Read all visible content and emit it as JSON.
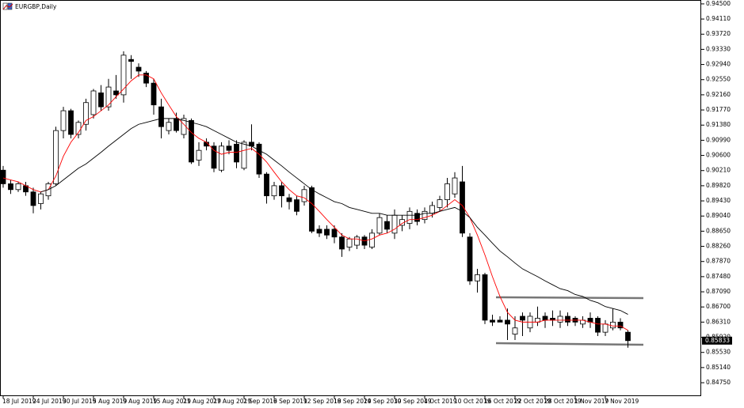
{
  "chart_data": {
    "type": "candlestick",
    "title": "EURGBP,Daily",
    "categories": [
      "18 Jul 2019",
      null,
      null,
      null,
      "24 Jul 2019",
      null,
      null,
      null,
      "30 Jul 2019",
      null,
      null,
      null,
      "5 Aug 2019",
      null,
      null,
      null,
      "9 Aug 2019",
      null,
      null,
      null,
      "15 Aug 2019",
      null,
      null,
      null,
      "21 Aug 2019",
      null,
      null,
      null,
      "27 Aug 2019",
      null,
      null,
      null,
      "2 Sep 2019",
      null,
      null,
      null,
      "6 Sep 2019",
      null,
      null,
      null,
      "12 Sep 2019",
      null,
      null,
      null,
      "18 Sep 2019",
      null,
      null,
      null,
      "24 Sep 2019",
      null,
      null,
      null,
      "30 Sep 2019",
      null,
      null,
      null,
      "4 Oct 2019",
      null,
      null,
      null,
      "10 Oct 2019",
      null,
      null,
      null,
      "16 Oct 2019",
      null,
      null,
      null,
      "22 Oct 2019",
      null,
      null,
      null,
      "28 Oct 2019",
      null,
      null,
      null,
      "1 Nov 2019",
      null,
      null,
      null,
      "7 Nov 2019",
      null,
      null,
      null
    ],
    "open": [
      0.9022,
      0.8987,
      0.8972,
      0.8982,
      0.8966,
      0.8936,
      0.8956,
      0.8987,
      0.9124,
      0.9175,
      0.9114,
      0.914,
      0.9165,
      0.9221,
      0.9185,
      0.9226,
      0.9216,
      0.9307,
      0.9287,
      0.9272,
      0.9246,
      0.9185,
      0.9124,
      0.9155,
      0.9114,
      0.915,
      0.9048,
      0.9094,
      0.9084,
      0.9022,
      0.9084,
      0.9089,
      0.9027,
      0.9094,
      0.9089,
      0.9012,
      0.8956,
      0.8982,
      0.8951,
      0.8946,
      0.8941,
      0.8977,
      0.887,
      0.887,
      0.887,
      0.885,
      0.8824,
      0.8829,
      0.885,
      0.8824,
      0.886,
      0.889,
      0.886,
      0.888,
      0.8885,
      0.8911,
      0.8895,
      0.8911,
      0.8926,
      0.8946,
      0.8961,
      0.8992,
      0.885,
      0.8737,
      0.8753,
      0.8636,
      0.8636,
      0.8636,
      0.86,
      0.8646,
      0.8616,
      0.8631,
      0.8646,
      0.8641,
      0.8631,
      0.8646,
      0.8641,
      0.8626,
      0.8641,
      0.8641,
      0.8605,
      0.8616,
      0.8631,
      0.8605
    ],
    "high": [
      0.9033,
      0.8997,
      0.8992,
      0.8992,
      0.8977,
      0.8966,
      0.8992,
      0.9134,
      0.9185,
      0.918,
      0.915,
      0.9206,
      0.9231,
      0.9241,
      0.9257,
      0.9267,
      0.9328,
      0.9318,
      0.9297,
      0.9277,
      0.9257,
      0.9206,
      0.9155,
      0.917,
      0.9165,
      0.9155,
      0.9094,
      0.9104,
      0.9094,
      0.9094,
      0.9099,
      0.9099,
      0.9099,
      0.914,
      0.9094,
      0.9017,
      0.8992,
      0.8992,
      0.8961,
      0.8956,
      0.8982,
      0.8982,
      0.888,
      0.888,
      0.888,
      0.886,
      0.885,
      0.8855,
      0.8855,
      0.887,
      0.8911,
      0.8906,
      0.8921,
      0.8906,
      0.8926,
      0.8921,
      0.8926,
      0.8941,
      0.8956,
      0.9002,
      0.9017,
      0.9033,
      0.886,
      0.8768,
      0.8758,
      0.865,
      0.8646,
      0.8666,
      0.8646,
      0.8656,
      0.8656,
      0.8671,
      0.8656,
      0.8661,
      0.8661,
      0.8656,
      0.8646,
      0.8646,
      0.8656,
      0.8646,
      0.8636,
      0.8666,
      0.8641,
      0.861
    ],
    "low": [
      0.8977,
      0.8961,
      0.8966,
      0.8956,
      0.8911,
      0.8921,
      0.8946,
      0.8982,
      0.9104,
      0.9104,
      0.9104,
      0.9124,
      0.9155,
      0.9175,
      0.9175,
      0.9206,
      0.9196,
      0.9257,
      0.9262,
      0.9236,
      0.9165,
      0.9104,
      0.9114,
      0.9119,
      0.9104,
      0.9038,
      0.9033,
      0.9073,
      0.9017,
      0.9017,
      0.9063,
      0.9027,
      0.9022,
      0.9073,
      0.9002,
      0.8936,
      0.8946,
      0.8926,
      0.8921,
      0.8906,
      0.8931,
      0.886,
      0.885,
      0.8845,
      0.8834,
      0.8799,
      0.8814,
      0.8819,
      0.8819,
      0.8819,
      0.8855,
      0.886,
      0.8845,
      0.8865,
      0.887,
      0.888,
      0.8885,
      0.89,
      0.8916,
      0.8926,
      0.8951,
      0.885,
      0.8727,
      0.8707,
      0.8626,
      0.8621,
      0.8631,
      0.8585,
      0.8585,
      0.8595,
      0.8605,
      0.8621,
      0.8616,
      0.8621,
      0.8616,
      0.8621,
      0.8621,
      0.8616,
      0.8616,
      0.8595,
      0.8595,
      0.861,
      0.861,
      0.8565
    ],
    "close": [
      0.8987,
      0.8972,
      0.8987,
      0.8966,
      0.8931,
      0.8961,
      0.8987,
      0.9124,
      0.9175,
      0.9114,
      0.9145,
      0.9196,
      0.9226,
      0.9185,
      0.9236,
      0.9216,
      0.9318,
      0.9302,
      0.9277,
      0.9246,
      0.919,
      0.9134,
      0.9145,
      0.9124,
      0.9155,
      0.9043,
      0.9073,
      0.9084,
      0.9027,
      0.9084,
      0.9073,
      0.9043,
      0.9094,
      0.9084,
      0.9012,
      0.8956,
      0.8982,
      0.8956,
      0.8941,
      0.8916,
      0.8972,
      0.8865,
      0.886,
      0.8855,
      0.885,
      0.8819,
      0.8845,
      0.885,
      0.8829,
      0.886,
      0.89,
      0.887,
      0.8906,
      0.8895,
      0.8916,
      0.889,
      0.8916,
      0.8931,
      0.8946,
      0.8987,
      0.9002,
      0.886,
      0.8737,
      0.8753,
      0.8636,
      0.8631,
      0.8631,
      0.8626,
      0.8616,
      0.8636,
      0.8646,
      0.8641,
      0.8636,
      0.8636,
      0.8646,
      0.8631,
      0.8631,
      0.8636,
      0.8631,
      0.8605,
      0.8626,
      0.8631,
      0.8616,
      0.85833
    ],
    "up_color": "#ffffff",
    "down_color": "#000000",
    "overlays": [
      {
        "color": "#ff0000",
        "values": [
          0.9002,
          0.8997,
          0.8992,
          0.8982,
          0.8972,
          0.8966,
          0.8972,
          0.9007,
          0.9058,
          0.9094,
          0.9119,
          0.915,
          0.916,
          0.9175,
          0.919,
          0.9211,
          0.9231,
          0.9252,
          0.9267,
          0.9267,
          0.9257,
          0.9221,
          0.919,
          0.916,
          0.914,
          0.9119,
          0.9104,
          0.9094,
          0.9073,
          0.9063,
          0.9068,
          0.9068,
          0.9073,
          0.9078,
          0.9063,
          0.9043,
          0.9017,
          0.8992,
          0.8972,
          0.8956,
          0.8951,
          0.8936,
          0.8916,
          0.8895,
          0.8875,
          0.8855,
          0.8845,
          0.8845,
          0.884,
          0.8845,
          0.8855,
          0.886,
          0.887,
          0.8885,
          0.8895,
          0.8895,
          0.89,
          0.8906,
          0.8916,
          0.8931,
          0.8946,
          0.8931,
          0.89,
          0.8855,
          0.8804,
          0.8748,
          0.8697,
          0.8656,
          0.8636,
          0.8631,
          0.8631,
          0.8631,
          0.8636,
          0.8636,
          0.8636,
          0.8636,
          0.8636,
          0.8636,
          0.8631,
          0.8626,
          0.8626,
          0.8621,
          0.8621,
          0.861
        ]
      },
      {
        "color": "#000000",
        "values": [
          null,
          null,
          null,
          null,
          null,
          0.8966,
          0.8972,
          0.8982,
          0.8997,
          0.9012,
          0.9027,
          0.9038,
          0.9053,
          0.9068,
          0.9084,
          0.9099,
          0.9114,
          0.9129,
          0.914,
          0.9145,
          0.915,
          0.9155,
          0.9155,
          0.9155,
          0.915,
          0.9145,
          0.914,
          0.9134,
          0.9124,
          0.9114,
          0.9104,
          0.9094,
          0.9089,
          0.9084,
          0.9073,
          0.9063,
          0.9048,
          0.9033,
          0.9017,
          0.9002,
          0.8987,
          0.8972,
          0.8961,
          0.8951,
          0.8941,
          0.8936,
          0.8926,
          0.8921,
          0.8916,
          0.8911,
          0.8911,
          0.8906,
          0.8906,
          0.8906,
          0.8906,
          0.8906,
          0.8911,
          0.8911,
          0.8916,
          0.8921,
          0.8926,
          0.8916,
          0.89,
          0.8875,
          0.8855,
          0.8834,
          0.8814,
          0.8799,
          0.8783,
          0.8768,
          0.8758,
          0.8748,
          0.8737,
          0.8727,
          0.8717,
          0.8712,
          0.8702,
          0.8697,
          0.8687,
          0.8681,
          0.8671,
          0.8666,
          0.8661,
          0.8651
        ]
      }
    ],
    "ylim": [
      0.84425,
      0.946
    ],
    "yticks": [
      {
        "value": 0.945,
        "label": "0.94500"
      },
      {
        "value": 0.9411,
        "label": "0.94110"
      },
      {
        "value": 0.9372,
        "label": "0.93720"
      },
      {
        "value": 0.9333,
        "label": "0.93330"
      },
      {
        "value": 0.9294,
        "label": "0.92940"
      },
      {
        "value": 0.9255,
        "label": "0.92550"
      },
      {
        "value": 0.9216,
        "label": "0.92160"
      },
      {
        "value": 0.9177,
        "label": "0.91770"
      },
      {
        "value": 0.9138,
        "label": "0.91380"
      },
      {
        "value": 0.9099,
        "label": "0.90990"
      },
      {
        "value": 0.906,
        "label": "0.90600"
      },
      {
        "value": 0.9021,
        "label": "0.90210"
      },
      {
        "value": 0.8982,
        "label": "0.89820"
      },
      {
        "value": 0.8943,
        "label": "0.89430"
      },
      {
        "value": 0.8904,
        "label": "0.89040"
      },
      {
        "value": 0.8865,
        "label": "0.88650"
      },
      {
        "value": 0.8826,
        "label": "0.88260"
      },
      {
        "value": 0.8787,
        "label": "0.87870"
      },
      {
        "value": 0.8748,
        "label": "0.87480"
      },
      {
        "value": 0.8709,
        "label": "0.87090"
      },
      {
        "value": 0.867,
        "label": "0.86700"
      },
      {
        "value": 0.8631,
        "label": "0.86310"
      },
      {
        "value": 0.8592,
        "label": "0.85920"
      },
      {
        "value": 0.8553,
        "label": "0.85530"
      },
      {
        "value": 0.8514,
        "label": "0.85140"
      },
      {
        "value": 0.8475,
        "label": "0.84750"
      }
    ],
    "grid": false
  }
}
